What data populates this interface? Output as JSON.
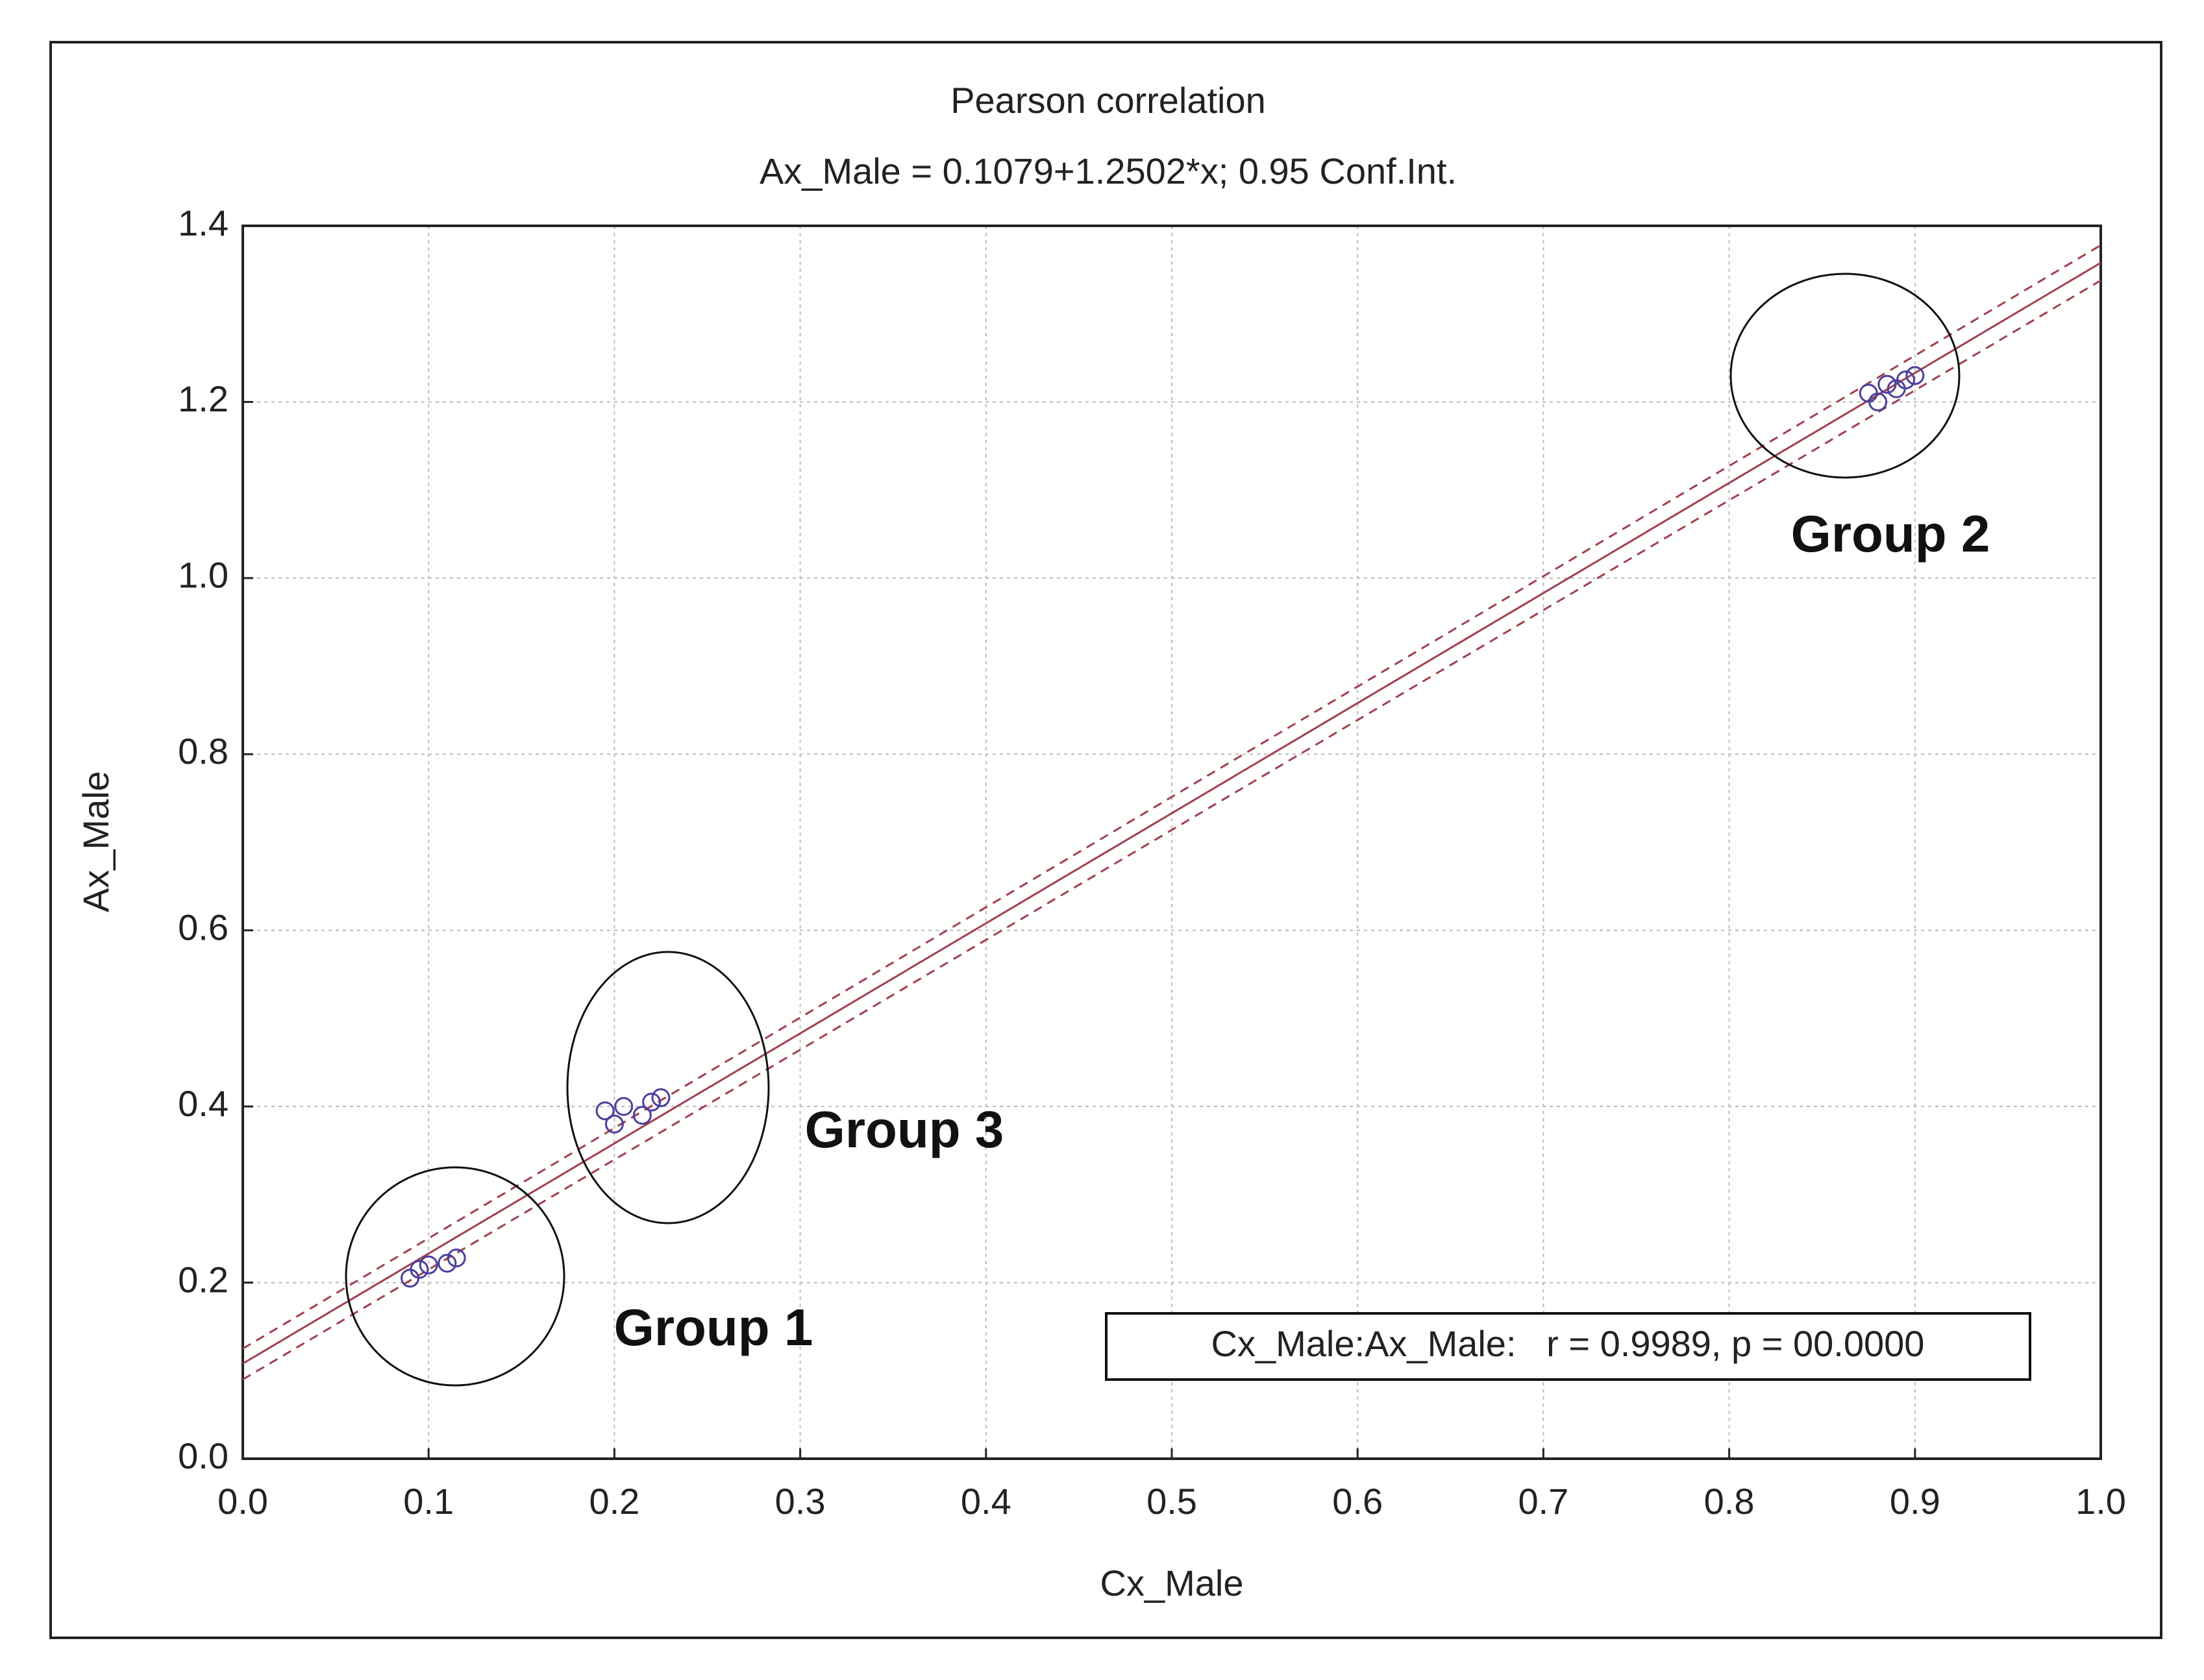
{
  "chart_data": {
    "type": "scatter",
    "title": "Pearson correlation",
    "subtitle": "Ax_Male = 0.1079+1.2502*x; 0.95 Conf.Int.",
    "x_label": "Cx_Male",
    "y_label": "Ax_Male",
    "x": [
      0.09,
      0.095,
      0.1,
      0.11,
      0.115,
      0.195,
      0.2,
      0.205,
      0.215,
      0.22,
      0.225,
      0.875,
      0.88,
      0.885,
      0.89,
      0.895,
      0.9
    ],
    "values": [
      0.205,
      0.215,
      0.22,
      0.222,
      0.228,
      0.395,
      0.38,
      0.4,
      0.39,
      0.405,
      0.41,
      1.21,
      1.2,
      1.22,
      1.215,
      1.225,
      1.23
    ],
    "color": "#4a3f9c",
    "fit": {
      "x": [
        0,
        1
      ],
      "values": [
        0.108,
        1.358
      ],
      "color": "#a0404c"
    },
    "ci_upper": {
      "x": [
        0,
        1
      ],
      "values": [
        0.125,
        1.378
      ],
      "color": "#a0404c"
    },
    "ci_lower": {
      "x": [
        0,
        1
      ],
      "values": [
        0.09,
        1.338
      ],
      "color": "#a0404c"
    },
    "xlim": [
      0,
      1
    ],
    "xticks": [
      {
        "value": 0,
        "label": "0.0"
      },
      0.1,
      0.2,
      0.3,
      0.4,
      0.5,
      0.6,
      0.7,
      0.8,
      0.9,
      {
        "value": 1,
        "label": "1.0"
      }
    ],
    "ylim": [
      0,
      1.4
    ],
    "yticks": [
      {
        "value": 0,
        "label": "0.0"
      },
      0.2,
      0.4,
      0.6,
      0.8,
      {
        "value": 1,
        "label": "1.0"
      },
      1.2,
      1.4
    ],
    "grid": true,
    "annotations": [
      "Group 1",
      "Group 2",
      "Group 3"
    ],
    "stats": "Cx_Male:Ax_Male:   r = 0.9989, p = 00.0000"
  }
}
